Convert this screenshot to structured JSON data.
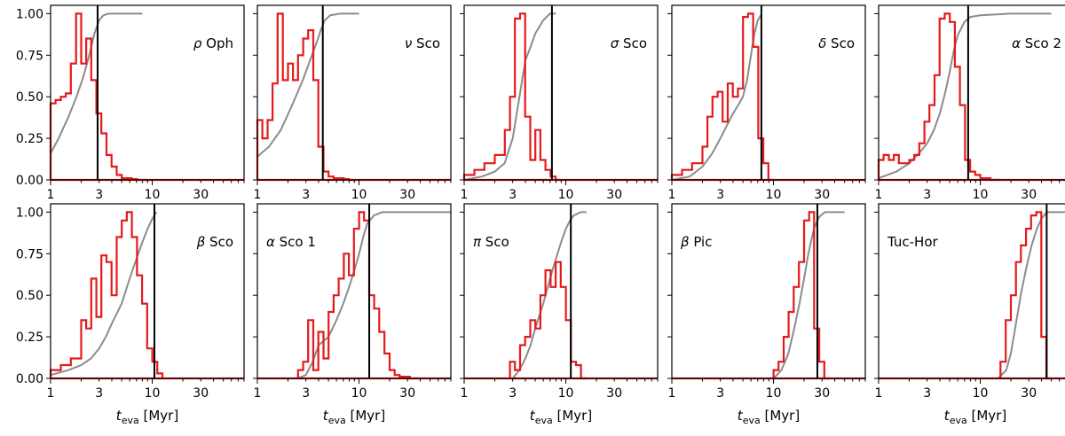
{
  "figure": {
    "y_ticks": [
      "0.00",
      "0.25",
      "0.50",
      "0.75",
      "1.00"
    ],
    "x_ticks": [
      "1",
      "3",
      "10",
      "30"
    ],
    "xlabel_main": "t",
    "xlabel_sub": "eva",
    "xlabel_unit": " [Myr]"
  },
  "chart_data": [
    {
      "type": "histogram+cdf",
      "label_greek": "ρ",
      "label_name": " Oph",
      "label_pos": "top-right",
      "xscale": "log",
      "xlim": [
        1,
        80
      ],
      "ylim": [
        0,
        1.05
      ],
      "vline": 2.9,
      "hist": {
        "edges": [
          1,
          1.12,
          1.26,
          1.41,
          1.58,
          1.78,
          2,
          2.24,
          2.51,
          2.82,
          3.16,
          3.55,
          3.98,
          4.47,
          5.01,
          5.62,
          6.31,
          7.08,
          7.94,
          8.91
        ],
        "values": [
          0.46,
          0.48,
          0.5,
          0.52,
          0.7,
          1.0,
          0.7,
          0.85,
          0.6,
          0.4,
          0.28,
          0.15,
          0.08,
          0.03,
          0.01,
          0.01,
          0.005,
          0,
          0
        ]
      },
      "cdf": {
        "x": [
          1,
          1.2,
          1.5,
          1.8,
          2.1,
          2.4,
          2.7,
          3.0,
          3.3,
          3.7,
          4.2,
          5,
          6,
          8
        ],
        "y": [
          0.16,
          0.25,
          0.38,
          0.5,
          0.62,
          0.75,
          0.88,
          0.96,
          0.99,
          1.0,
          1.0,
          1.0,
          1.0,
          1.0
        ]
      }
    },
    {
      "type": "histogram+cdf",
      "label_greek": "ν",
      "label_name": " Sco",
      "label_pos": "top-right",
      "xscale": "log",
      "xlim": [
        1,
        80
      ],
      "ylim": [
        0,
        1.05
      ],
      "vline": 4.4,
      "hist": {
        "edges": [
          1,
          1.12,
          1.26,
          1.41,
          1.58,
          1.78,
          2,
          2.24,
          2.51,
          2.82,
          3.16,
          3.55,
          3.98,
          4.47,
          5.01,
          5.62,
          6.31,
          7.08,
          7.94,
          8.91
        ],
        "values": [
          0.36,
          0.25,
          0.36,
          0.58,
          1.0,
          0.6,
          0.7,
          0.6,
          0.75,
          0.85,
          0.9,
          0.6,
          0.2,
          0.05,
          0.02,
          0.01,
          0.01,
          0.005,
          0
        ]
      },
      "cdf": {
        "x": [
          1,
          1.3,
          1.7,
          2.2,
          2.8,
          3.3,
          3.8,
          4.2,
          4.6,
          5.2,
          6.5,
          8,
          10
        ],
        "y": [
          0.14,
          0.2,
          0.3,
          0.45,
          0.6,
          0.72,
          0.82,
          0.9,
          0.96,
          0.99,
          1.0,
          1.0,
          1.0
        ]
      }
    },
    {
      "type": "histogram+cdf",
      "label_greek": "σ",
      "label_name": " Sco",
      "label_pos": "top-right",
      "xscale": "log",
      "xlim": [
        1,
        80
      ],
      "ylim": [
        0,
        1.05
      ],
      "vline": 7.3,
      "hist": {
        "edges": [
          1,
          1.26,
          1.58,
          2,
          2.51,
          2.82,
          3.16,
          3.55,
          3.98,
          4.47,
          5.01,
          5.62,
          6.31,
          7.08,
          7.94,
          8.91
        ],
        "values": [
          0.03,
          0.06,
          0.1,
          0.15,
          0.3,
          0.5,
          0.97,
          1.0,
          0.38,
          0.12,
          0.3,
          0.12,
          0.06,
          0.02,
          0
        ]
      },
      "cdf": {
        "x": [
          1,
          1.5,
          2,
          2.5,
          3,
          3.5,
          4,
          4.5,
          5,
          6,
          7,
          8
        ],
        "y": [
          0,
          0.02,
          0.05,
          0.1,
          0.25,
          0.5,
          0.72,
          0.8,
          0.88,
          0.96,
          1.0,
          1.0
        ]
      }
    },
    {
      "type": "histogram+cdf",
      "label_greek": "δ",
      "label_name": " Sco",
      "label_pos": "top-right",
      "xscale": "log",
      "xlim": [
        1,
        80
      ],
      "ylim": [
        0,
        1.05
      ],
      "vline": 7.6,
      "hist": {
        "edges": [
          1,
          1.26,
          1.58,
          2,
          2.24,
          2.51,
          2.82,
          3.16,
          3.55,
          3.98,
          4.47,
          5.01,
          5.62,
          6.31,
          7.08,
          7.94,
          8.91,
          10
        ],
        "values": [
          0.03,
          0.06,
          0.1,
          0.2,
          0.38,
          0.5,
          0.53,
          0.35,
          0.58,
          0.5,
          0.55,
          0.98,
          1.0,
          0.8,
          0.25,
          0.1,
          0
        ]
      },
      "cdf": {
        "x": [
          1,
          1.5,
          2,
          2.5,
          3,
          3.5,
          4,
          4.5,
          5,
          5.5,
          6,
          6.5,
          7,
          7.5
        ],
        "y": [
          0,
          0.02,
          0.08,
          0.16,
          0.25,
          0.33,
          0.4,
          0.45,
          0.5,
          0.6,
          0.75,
          0.88,
          0.96,
          0.99
        ]
      }
    },
    {
      "type": "histogram+cdf",
      "label_greek": "α",
      "label_name": " Sco 2",
      "label_pos": "top-right",
      "xscale": "log",
      "xlim": [
        1,
        80
      ],
      "ylim": [
        0,
        1.05
      ],
      "vline": 7.6,
      "hist": {
        "edges": [
          1,
          1.12,
          1.26,
          1.41,
          1.58,
          1.78,
          2,
          2.24,
          2.51,
          2.82,
          3.16,
          3.55,
          3.98,
          4.47,
          5.01,
          5.62,
          6.31,
          7.08,
          7.94,
          8.91,
          10,
          11.2,
          12.6,
          14.1,
          15.8
        ],
        "values": [
          0.12,
          0.15,
          0.12,
          0.15,
          0.1,
          0.1,
          0.12,
          0.15,
          0.22,
          0.35,
          0.45,
          0.63,
          0.97,
          1.0,
          0.95,
          0.68,
          0.45,
          0.12,
          0.05,
          0.03,
          0.01,
          0.01,
          0,
          0
        ]
      },
      "cdf": {
        "x": [
          1,
          1.5,
          2,
          2.5,
          3,
          3.5,
          4,
          4.5,
          5,
          5.5,
          6,
          7,
          8,
          10,
          20,
          50
        ],
        "y": [
          0.01,
          0.05,
          0.1,
          0.16,
          0.22,
          0.3,
          0.4,
          0.52,
          0.65,
          0.78,
          0.87,
          0.95,
          0.98,
          0.99,
          1.0,
          1.0
        ]
      }
    },
    {
      "type": "histogram+cdf",
      "label_greek": "β",
      "label_name": " Sco",
      "label_pos": "top-right",
      "xscale": "log",
      "xlim": [
        1,
        80
      ],
      "ylim": [
        0,
        1.05
      ],
      "vline": 10.5,
      "hist": {
        "edges": [
          1,
          1.26,
          1.58,
          2,
          2.24,
          2.51,
          2.82,
          3.16,
          3.55,
          3.98,
          4.47,
          5.01,
          5.62,
          6.31,
          7.08,
          7.94,
          8.91,
          10,
          11.2,
          12.6
        ],
        "values": [
          0.05,
          0.08,
          0.12,
          0.35,
          0.3,
          0.6,
          0.37,
          0.74,
          0.7,
          0.5,
          0.85,
          0.95,
          1.0,
          0.85,
          0.62,
          0.45,
          0.18,
          0.1,
          0.03
        ]
      },
      "cdf": {
        "x": [
          1,
          1.5,
          2,
          2.5,
          3,
          3.5,
          4,
          5,
          6,
          7,
          8,
          9,
          10,
          11
        ],
        "y": [
          0.02,
          0.05,
          0.08,
          0.12,
          0.18,
          0.25,
          0.33,
          0.45,
          0.6,
          0.72,
          0.82,
          0.9,
          0.96,
          1.0
        ]
      }
    },
    {
      "type": "histogram+cdf",
      "label_greek": "α",
      "label_name": " Sco 1",
      "label_pos": "top-left",
      "xscale": "log",
      "xlim": [
        1,
        80
      ],
      "ylim": [
        0,
        1.05
      ],
      "vline": 12.6,
      "hist": {
        "edges": [
          2.51,
          2.82,
          3.16,
          3.55,
          3.98,
          4.47,
          5.01,
          5.62,
          6.31,
          7.08,
          7.94,
          8.91,
          10,
          11.2,
          12.6,
          14.1,
          15.8,
          17.8,
          20,
          22.4,
          25.1,
          31.6,
          39.8
        ],
        "values": [
          0.05,
          0.1,
          0.35,
          0.05,
          0.28,
          0.12,
          0.4,
          0.5,
          0.6,
          0.75,
          0.62,
          0.9,
          1.0,
          0.95,
          0.5,
          0.42,
          0.28,
          0.15,
          0.05,
          0.02,
          0.01,
          0
        ]
      },
      "cdf": {
        "x": [
          2.5,
          3,
          3.5,
          4,
          5,
          6,
          7,
          8,
          9,
          10,
          11,
          12,
          14,
          17,
          20,
          40,
          80
        ],
        "y": [
          0,
          0.02,
          0.1,
          0.2,
          0.25,
          0.35,
          0.45,
          0.55,
          0.65,
          0.75,
          0.85,
          0.93,
          0.98,
          1.0,
          1.0,
          1.0,
          1.0
        ]
      }
    },
    {
      "type": "histogram+cdf",
      "label_greek": "π",
      "label_name": " Sco",
      "label_pos": "top-left",
      "xscale": "log",
      "xlim": [
        1,
        80
      ],
      "ylim": [
        0,
        1.05
      ],
      "vline": 11.2,
      "hist": {
        "edges": [
          2.82,
          3.16,
          3.55,
          3.98,
          4.47,
          5.01,
          5.62,
          6.31,
          7.08,
          7.94,
          8.91,
          10,
          11.2,
          12.6,
          14.1,
          15.8
        ],
        "values": [
          0.1,
          0.05,
          0.2,
          0.25,
          0.35,
          0.3,
          0.5,
          0.65,
          0.55,
          0.7,
          0.55,
          0.35,
          0.1,
          0.08,
          0
        ]
      },
      "cdf": {
        "x": [
          3,
          3.5,
          4,
          4.5,
          5,
          6,
          7,
          8,
          9,
          10,
          11,
          12,
          14,
          16
        ],
        "y": [
          0,
          0.05,
          0.12,
          0.2,
          0.3,
          0.45,
          0.6,
          0.72,
          0.82,
          0.9,
          0.95,
          0.98,
          1.0,
          1.0
        ]
      }
    },
    {
      "type": "histogram+cdf",
      "label_greek": "β",
      "label_name": " Pic",
      "label_pos": "top-left",
      "xscale": "log",
      "xlim": [
        1,
        80
      ],
      "ylim": [
        0,
        1.05
      ],
      "vline": 27,
      "hist": {
        "edges": [
          10,
          11.2,
          12.6,
          14.1,
          15.8,
          17.8,
          20,
          22.4,
          25.1,
          28.2,
          31.6,
          35.5
        ],
        "values": [
          0.05,
          0.1,
          0.25,
          0.4,
          0.55,
          0.7,
          0.95,
          1.0,
          0.3,
          0.1,
          0
        ]
      },
      "cdf": {
        "x": [
          10,
          12,
          14,
          16,
          18,
          20,
          22,
          25,
          28,
          32,
          40,
          50
        ],
        "y": [
          0,
          0.05,
          0.15,
          0.3,
          0.45,
          0.6,
          0.75,
          0.9,
          0.97,
          1.0,
          1.0,
          1.0
        ]
      }
    },
    {
      "type": "histogram+cdf",
      "label_greek": "",
      "label_name": "Tuc-Hor",
      "label_pos": "top-left",
      "xscale": "log",
      "xlim": [
        1,
        80
      ],
      "ylim": [
        0,
        1.05
      ],
      "vline": 45,
      "hist": {
        "edges": [
          15.8,
          17.8,
          20,
          22.4,
          25.1,
          28.2,
          31.6,
          35.5,
          39.8,
          44.7,
          50.1
        ],
        "values": [
          0.1,
          0.35,
          0.5,
          0.7,
          0.8,
          0.9,
          0.98,
          1.0,
          0.25,
          0
        ]
      },
      "cdf": {
        "x": [
          15,
          18,
          20,
          22,
          25,
          28,
          32,
          36,
          40,
          45,
          50,
          70
        ],
        "y": [
          0,
          0.05,
          0.15,
          0.3,
          0.5,
          0.65,
          0.8,
          0.9,
          0.96,
          1.0,
          1.0,
          1.0
        ]
      }
    }
  ]
}
